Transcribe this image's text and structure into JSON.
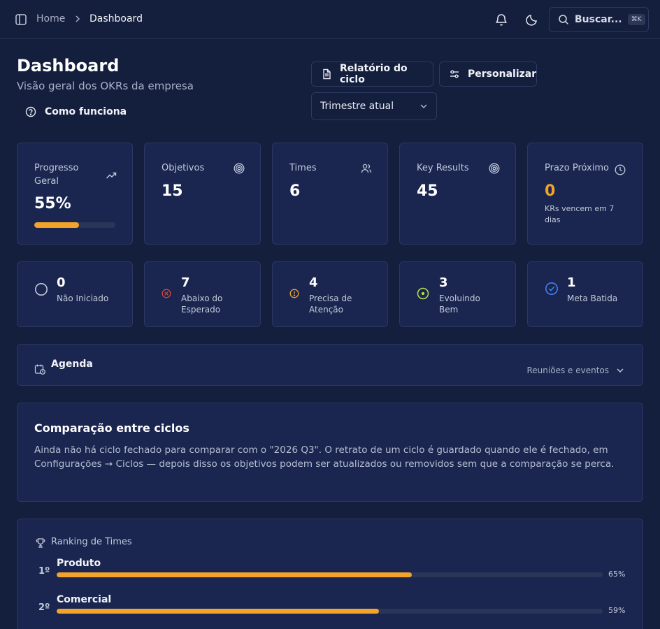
{
  "header": {
    "breadcrumb_home": "Home",
    "breadcrumb_current": "Dashboard",
    "search_label": "Buscar...",
    "search_shortcut": "⌘K"
  },
  "page": {
    "title": "Dashboard",
    "subtitle": "Visão geral dos OKRs da empresa",
    "how_it_works": "Como funciona",
    "report_button": "Relatório do ciclo",
    "customize_button": "Personalizar",
    "period_select": "Trimestre atual"
  },
  "stats": {
    "progress": {
      "label": "Progresso Geral",
      "value": "55%",
      "fraction": 0.55,
      "icon": "trending-up-icon"
    },
    "objectives": {
      "label": "Objetivos",
      "value": "15",
      "icon": "target-icon"
    },
    "teams": {
      "label": "Times",
      "value": "6",
      "icon": "users-icon"
    },
    "key_results": {
      "label": "Key Results",
      "value": "45",
      "icon": "target-icon"
    },
    "deadline": {
      "label": "Prazo Próximo",
      "value": "0",
      "sub": "KRs vencem em 7 dias",
      "icon": "clock-icon"
    }
  },
  "statuses": [
    {
      "value": "0",
      "label": "Não Iniciado",
      "icon": "circle-icon",
      "color": "#c3c9da"
    },
    {
      "value": "7",
      "label": "Abaixo do Esperado",
      "icon": "x-circle-icon",
      "color": "#d0453f"
    },
    {
      "value": "4",
      "label": "Precisa de Atenção",
      "icon": "alert-circle-icon",
      "color": "#f2a32a"
    },
    {
      "value": "3",
      "label": "Evoluindo Bem",
      "icon": "dot-circle-icon",
      "color": "#b7e04a"
    },
    {
      "value": "1",
      "label": "Meta Batida",
      "icon": "check-circle-icon",
      "color": "#3b82f6"
    }
  ],
  "agenda": {
    "title": "Agenda",
    "select": "Reuniões e eventos"
  },
  "comparison": {
    "title": "Comparação entre ciclos",
    "text": "Ainda não há ciclo fechado para comparar com o \"2026 Q3\". O retrato de um ciclo é guardado quando ele é fechado, em Configurações → Ciclos — depois disso os objetivos podem ser atualizados ou removidos sem que a comparação se perca."
  },
  "ranking": {
    "title": "Ranking de Times",
    "rows": [
      {
        "position": "1º",
        "name": "Produto",
        "pct": "65%",
        "fraction": 0.65
      },
      {
        "position": "2º",
        "name": "Comercial",
        "pct": "59%",
        "fraction": 0.59
      }
    ]
  },
  "colors": {
    "background": "#141e3d",
    "card": "#1a2650",
    "accent": "#f2a32a"
  }
}
